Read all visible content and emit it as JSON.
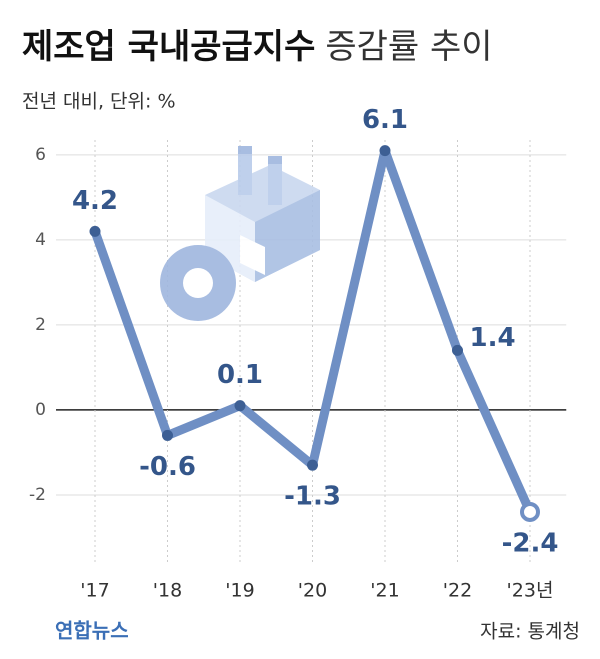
{
  "logo": "연합뉴스",
  "chart_data": {
    "type": "line",
    "title": "제조업 국내공급지수",
    "title_suffix": "증감률 추이",
    "subtitle": "전년 대비, 단위: %",
    "source": "자료: 통계청",
    "categories": [
      "'17",
      "'18",
      "'19",
      "'20",
      "'21",
      "'22",
      "'23년"
    ],
    "series": [
      {
        "name": "증감률",
        "color": "#6f8fc4",
        "values": [
          4.2,
          -0.6,
          0.1,
          -1.3,
          6.1,
          1.4,
          -2.4
        ]
      }
    ],
    "ylim": [
      -3.06,
      6.35
    ],
    "yticks": [
      -2,
      0,
      2,
      4,
      6
    ],
    "grid": true
  }
}
